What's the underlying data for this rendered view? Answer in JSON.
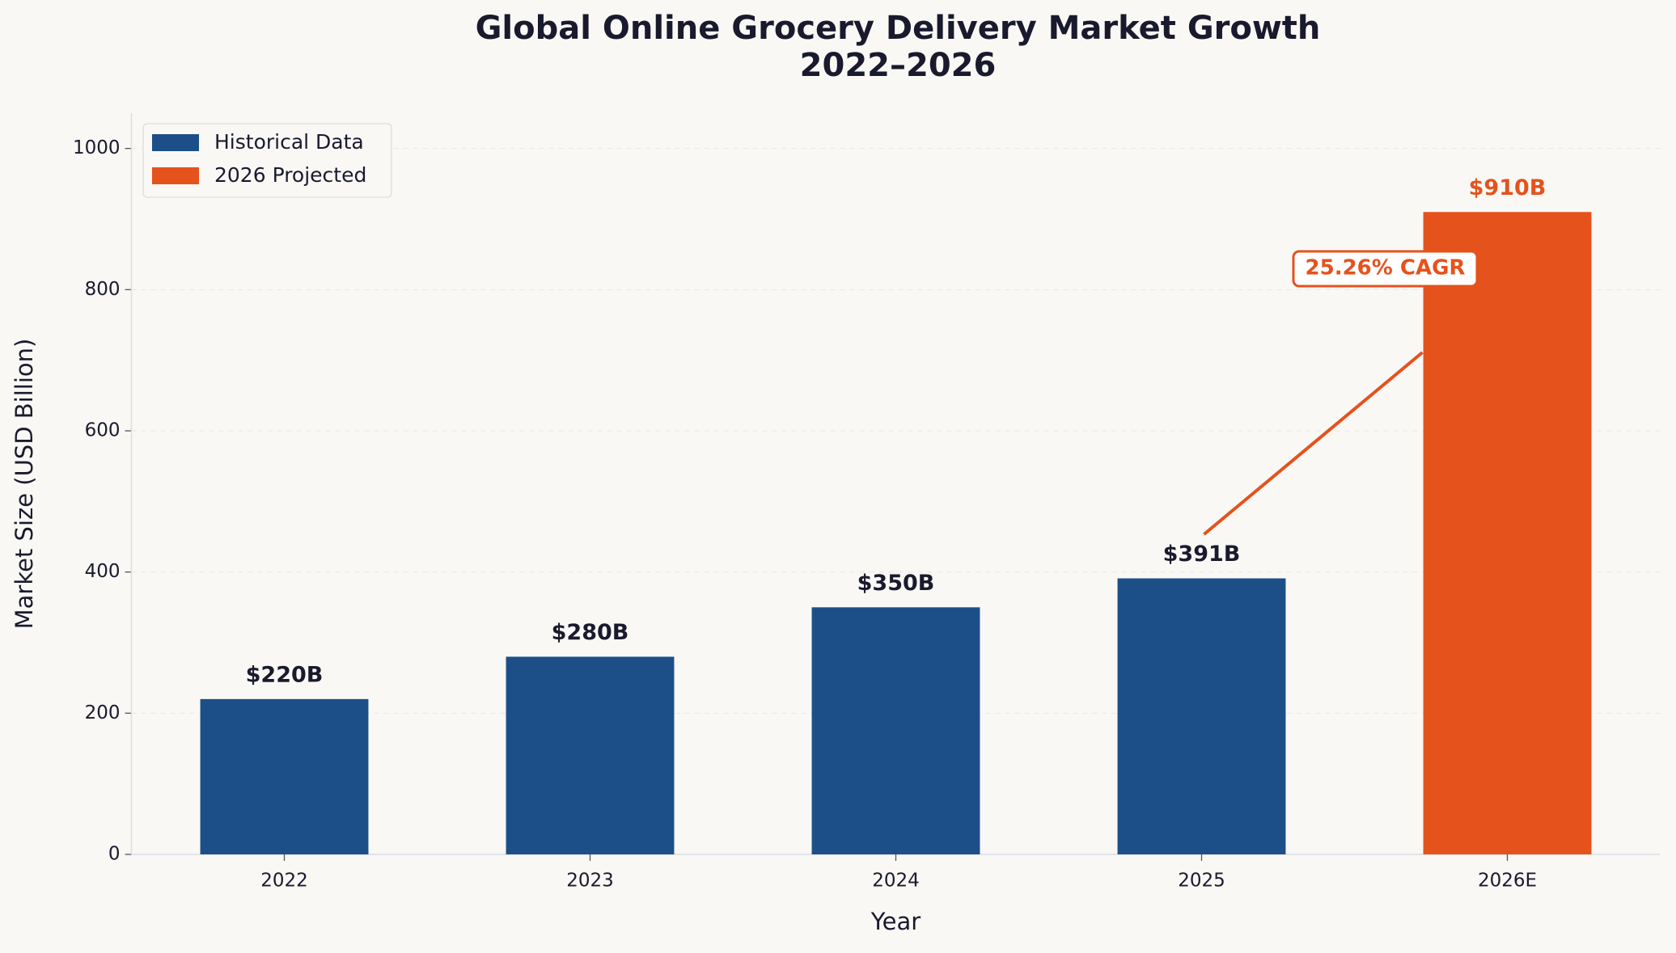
{
  "chart_data": {
    "type": "bar",
    "title": "Global Online Grocery Delivery Market Growth\n2022–2026",
    "x_label": "Year",
    "y_label": "Market Size (USD Billion)",
    "categories": [
      "2022",
      "2023",
      "2024",
      "2025",
      "2026E"
    ],
    "series": [
      {
        "name": "Historical Data",
        "color": "#1c4f87",
        "label_color": "#1a1a2e",
        "values": [
          220,
          280,
          350,
          391,
          null
        ],
        "value_labels": [
          "$220B",
          "$280B",
          "$350B",
          "$391B",
          null
        ]
      },
      {
        "name": "2026 Projected",
        "color": "#e5521c",
        "label_color": "#e5521c",
        "values": [
          null,
          null,
          null,
          null,
          910
        ],
        "value_labels": [
          null,
          null,
          null,
          null,
          "$910B"
        ]
      }
    ],
    "annotation": "25.26% CAGR",
    "ylim": [
      0,
      1050
    ],
    "yticks": [
      0,
      200,
      400,
      600,
      800,
      1000
    ],
    "grid": true,
    "legend": "upper left"
  }
}
